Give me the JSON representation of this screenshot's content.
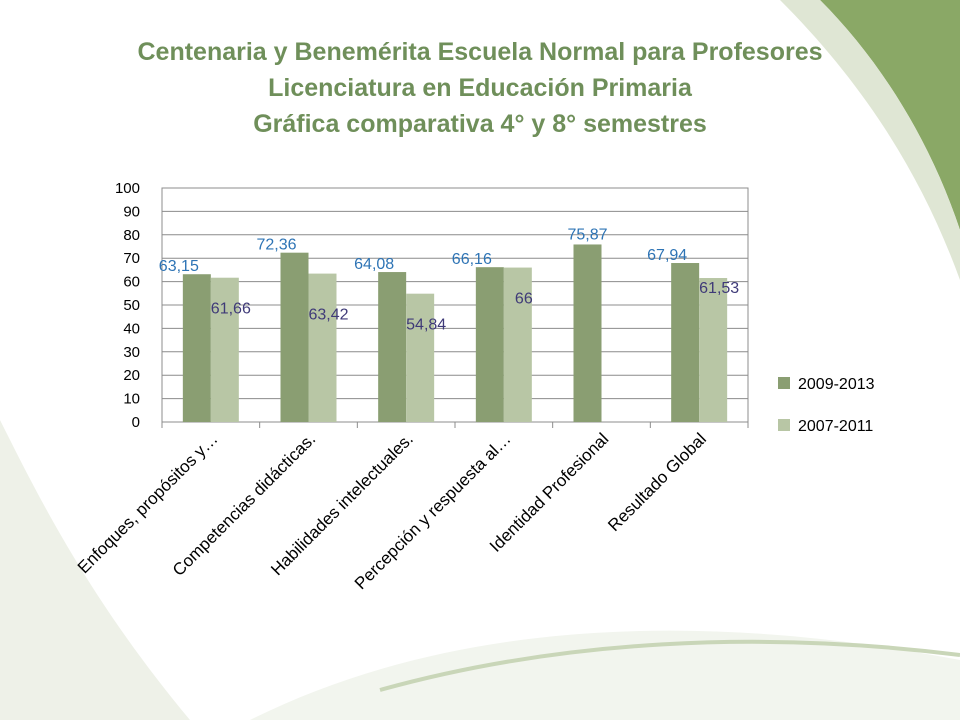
{
  "title": {
    "line1": "Centenaria y Benemérita Escuela Normal para Profesores",
    "line2": "Licenciatura en Educación Primaria",
    "line3": "Gráfica comparativa 4° y 8° semestres"
  },
  "colors": {
    "title": "#6f8f5a",
    "series1": "#8a9e72",
    "series2": "#b8c6a5",
    "label1": "#2e74b5",
    "label2": "#3f3a78",
    "decor_light": "#eef1e8",
    "decor_dark": "#8aa866"
  },
  "chart_data": {
    "type": "bar",
    "categories": [
      "Enfoques, propósitos y…",
      "Competencias didácticas.",
      "Habilidades intelectuales.",
      "Percepción y respuesta al…",
      "Identidad Profesional",
      "Resultado Global"
    ],
    "series": [
      {
        "name": "2009-2013",
        "values": [
          63.15,
          72.36,
          64.08,
          66.16,
          75.87,
          67.94
        ],
        "labels": [
          "63,15",
          "72,36",
          "64,08",
          "66,16",
          "75,87",
          "67,94"
        ]
      },
      {
        "name": "2007-2011",
        "values": [
          61.66,
          63.42,
          54.84,
          66,
          null,
          61.53
        ],
        "labels": [
          "61,66",
          "63,42",
          "54,84",
          "66",
          "",
          "61,53"
        ]
      }
    ],
    "ylim": [
      0,
      100
    ],
    "yticks": [
      "0",
      "10",
      "20",
      "30",
      "40",
      "50",
      "60",
      "70",
      "80",
      "90",
      "100"
    ],
    "grid": true,
    "legend_position": "right"
  }
}
